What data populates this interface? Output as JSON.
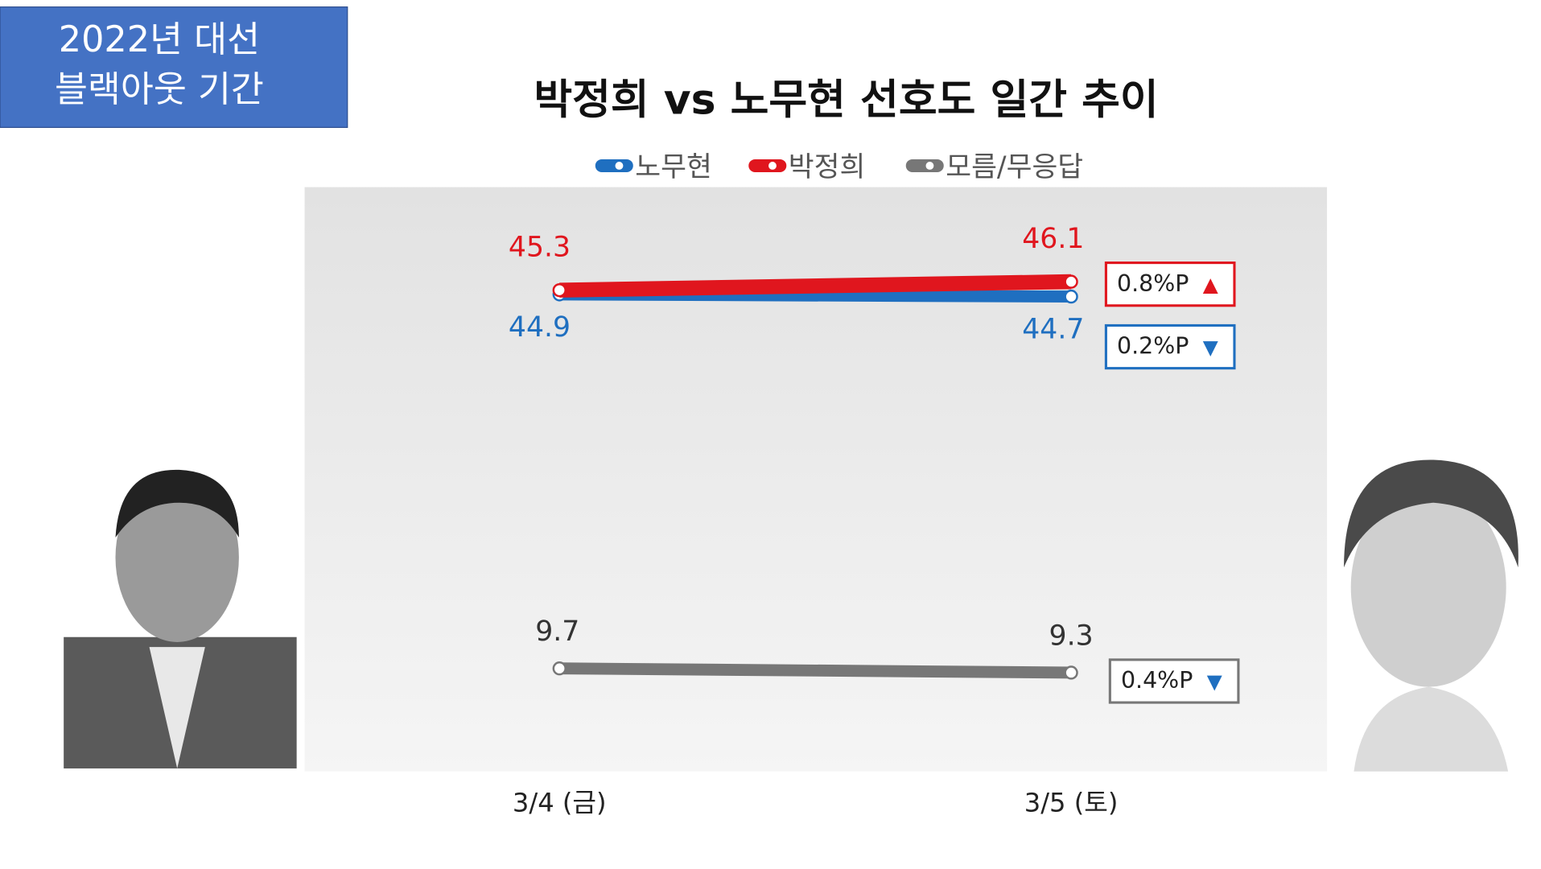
{
  "badge": [
    "2022년 대선",
    "블랙아웃 기간"
  ],
  "chart_data": {
    "type": "line",
    "title": "박정희 vs 노무현 선호도 일간 추이",
    "categories": [
      "3/4 (금)",
      "3/5 (토)"
    ],
    "ylim": [
      0,
      55
    ],
    "series": [
      {
        "name": "노무현",
        "color": "#1f6fc0",
        "values": [
          44.9,
          44.7
        ],
        "label_side": "below",
        "change": "0.2%P",
        "arrow": "▼"
      },
      {
        "name": "박정희",
        "color": "#e0161e",
        "values": [
          45.3,
          46.1
        ],
        "label_side": "above",
        "change": "0.8%P",
        "arrow": "▲"
      },
      {
        "name": "모름/무응답",
        "color": "#777777",
        "values": [
          9.7,
          9.3
        ],
        "label_side": "above",
        "change": "0.4%P",
        "arrow": "▼"
      }
    ]
  }
}
